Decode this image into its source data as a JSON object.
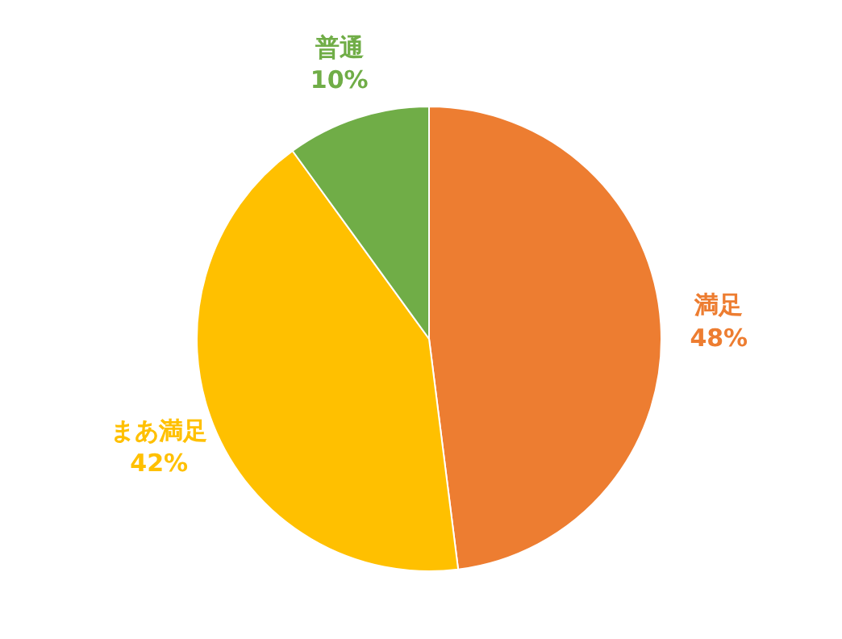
{
  "chart_data": {
    "type": "pie",
    "categories": [
      "満足",
      "まあ満足",
      "普通"
    ],
    "values": [
      48,
      42,
      10
    ],
    "colors": [
      "#ed7d31",
      "#ffc000",
      "#70ad47"
    ],
    "value_labels": [
      "48%",
      "42%",
      "10%"
    ],
    "legend": false
  }
}
